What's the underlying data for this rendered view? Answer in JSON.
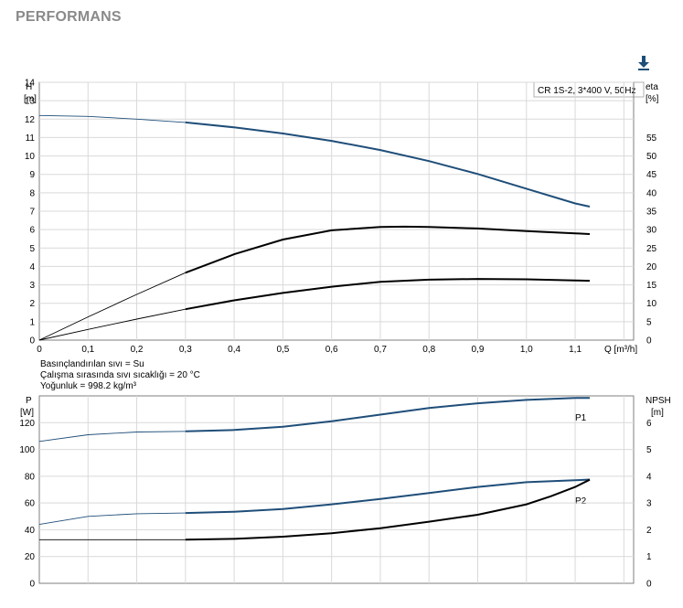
{
  "page": {
    "title": "PERFORMANS"
  },
  "toolbar": {
    "download_icon": "download-icon"
  },
  "colors": {
    "curve_blue": "#1f4e79",
    "curve_black": "#000000",
    "grid": "#d9d9d9"
  },
  "chart_data": [
    {
      "type": "line",
      "id": "head-efficiency",
      "title": "",
      "legend": "CR 1S-2, 3*400 V, 50Hz",
      "y_label_line1": "H",
      "y_label_line2": "[m]",
      "y2_label_line1": "eta",
      "y2_label_line2": "[%]",
      "x_label": "Q [m³/h]",
      "xlim": [
        0,
        1.2
      ],
      "ylim": [
        0,
        14
      ],
      "y2lim": [
        0,
        70
      ],
      "x_ticks": [
        "0",
        "0,1",
        "0,2",
        "0,3",
        "0,4",
        "0,5",
        "0,6",
        "0,7",
        "0,8",
        "0,9",
        "1,0",
        "1,1"
      ],
      "y_ticks": [
        "0",
        "1",
        "2",
        "3",
        "4",
        "5",
        "6",
        "7",
        "8",
        "9",
        "10",
        "11",
        "12",
        "13",
        "14"
      ],
      "y2_ticks": [
        "0",
        "5",
        "10",
        "15",
        "20",
        "25",
        "30",
        "35",
        "40",
        "45",
        "50",
        "55"
      ],
      "grid": true,
      "series": [
        {
          "key": "H",
          "axis": "left",
          "color": "#1f4e79",
          "x": [
            0,
            0.1,
            0.2,
            0.3,
            0.4,
            0.5,
            0.6,
            0.7,
            0.8,
            0.9,
            1.0,
            1.1,
            1.13
          ],
          "y": [
            12.2,
            12.15,
            12.0,
            11.82,
            11.55,
            11.22,
            10.82,
            10.32,
            9.72,
            9.02,
            8.22,
            7.42,
            7.25
          ]
        },
        {
          "key": "eta_upper",
          "axis": "right",
          "color": "#000000",
          "x": [
            0,
            0.1,
            0.2,
            0.3,
            0.4,
            0.5,
            0.6,
            0.7,
            0.75,
            0.8,
            0.9,
            1.0,
            1.1,
            1.13
          ],
          "y": [
            0,
            6.3,
            12.4,
            18.3,
            23.3,
            27.3,
            29.8,
            30.7,
            30.8,
            30.7,
            30.3,
            29.6,
            29.0,
            28.8
          ]
        },
        {
          "key": "eta_lower",
          "axis": "right",
          "color": "#000000",
          "x": [
            0,
            0.1,
            0.2,
            0.3,
            0.4,
            0.5,
            0.6,
            0.7,
            0.8,
            0.9,
            1.0,
            1.1,
            1.13
          ],
          "y": [
            0,
            2.9,
            5.7,
            8.4,
            10.8,
            12.8,
            14.5,
            15.8,
            16.4,
            16.6,
            16.5,
            16.2,
            16.1
          ]
        }
      ]
    },
    {
      "type": "line",
      "id": "power-npsh",
      "y_label_line1": "P",
      "y_label_line2": "[W]",
      "y2_label_line1": "NPSH",
      "y2_label_line2": "[m]",
      "xlim": [
        0,
        1.2
      ],
      "ylim": [
        0,
        140
      ],
      "y2lim": [
        0,
        7
      ],
      "y_ticks": [
        "0",
        "20",
        "40",
        "60",
        "80",
        "100",
        "120"
      ],
      "y2_ticks": [
        "0",
        "1",
        "2",
        "3",
        "4",
        "5",
        "6"
      ],
      "grid": true,
      "series": [
        {
          "key": "P1",
          "label": "P1",
          "axis": "left",
          "color": "#1f4e79",
          "x": [
            0,
            0.1,
            0.2,
            0.3,
            0.4,
            0.5,
            0.6,
            0.7,
            0.8,
            0.9,
            1.0,
            1.1,
            1.13
          ],
          "y": [
            106,
            111,
            113,
            113.5,
            114.5,
            117,
            121,
            126,
            131,
            134.5,
            137,
            138.5,
            138.5
          ]
        },
        {
          "key": "P2",
          "label": "P2",
          "axis": "left",
          "color": "#1f4e79",
          "x": [
            0,
            0.1,
            0.2,
            0.3,
            0.4,
            0.5,
            0.6,
            0.7,
            0.8,
            0.9,
            1.0,
            1.1,
            1.13
          ],
          "y": [
            44,
            50,
            52,
            52.5,
            53.5,
            55.5,
            59,
            63,
            67.5,
            72,
            75.5,
            77,
            77.5
          ]
        },
        {
          "key": "NPSH",
          "axis": "right",
          "color": "#000000",
          "x": [
            0,
            0.1,
            0.2,
            0.3,
            0.4,
            0.5,
            0.6,
            0.7,
            0.8,
            0.9,
            1.0,
            1.05,
            1.1,
            1.13
          ],
          "y": [
            1.63,
            1.63,
            1.63,
            1.63,
            1.66,
            1.74,
            1.87,
            2.06,
            2.3,
            2.56,
            2.95,
            3.25,
            3.6,
            3.87
          ]
        }
      ]
    }
  ],
  "notes": [
    "Basınçlandırılan sıvı = Su",
    "Çalışma sırasında sıvı sıcaklığı = 20 °C",
    "Yoğunluk = 998.2 kg/m³"
  ]
}
